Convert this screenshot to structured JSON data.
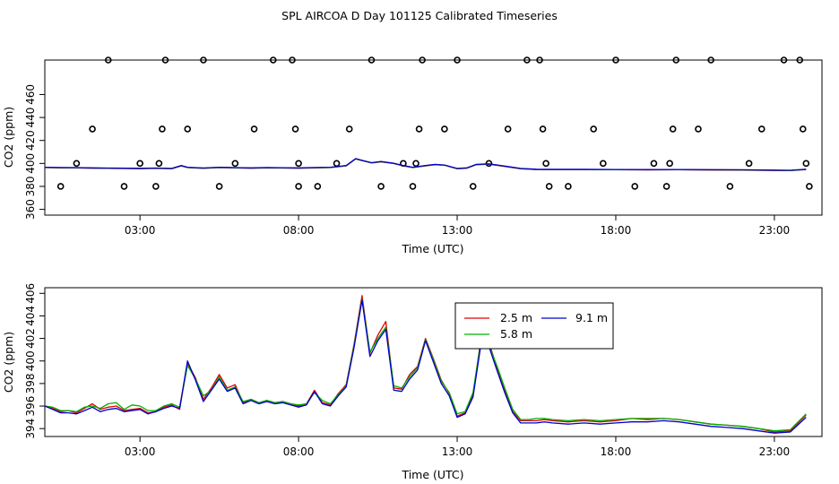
{
  "title": "SPL AIRCOA D  Day 101125  Calibrated Timeseries",
  "chart_data": [
    {
      "type": "scatter+line",
      "ylabel": "CO2 (ppm)",
      "xlabel": "Time (UTC)",
      "xlim": [
        0,
        24.5
      ],
      "ylim": [
        355,
        490
      ],
      "xticks": [
        3,
        8,
        13,
        18,
        23
      ],
      "xtick_labels": [
        "03:00",
        "08:00",
        "13:00",
        "18:00",
        "23:00"
      ],
      "yticks": [
        360,
        380,
        400,
        420,
        440,
        460
      ],
      "ytick_labels": [
        "360",
        "",
        "400",
        "",
        "440",
        ""
      ],
      "ytick_labels_full": [
        "360",
        "380",
        "400",
        "420",
        "440",
        "460"
      ],
      "colors": {
        "2.5 m": "#e00000",
        "5.8 m": "#00b000",
        "9.1 m": "#0000cc",
        "points": "#000000"
      },
      "line_x": [
        0.0,
        0.5,
        1.0,
        1.5,
        2.0,
        2.5,
        3.0,
        3.5,
        4.0,
        4.3,
        4.5,
        5.0,
        5.5,
        6.0,
        6.5,
        7.0,
        7.5,
        8.0,
        8.5,
        9.0,
        9.5,
        9.8,
        10.0,
        10.3,
        10.6,
        11.0,
        11.3,
        11.6,
        12.0,
        12.3,
        12.6,
        13.0,
        13.3,
        13.6,
        14.0,
        14.5,
        15.0,
        15.5,
        16.0,
        17.0,
        18.0,
        19.0,
        20.0,
        21.0,
        22.0,
        23.0,
        23.5,
        24.0
      ],
      "line_y": [
        396.5,
        396.3,
        396.2,
        396.0,
        395.8,
        395.7,
        395.6,
        395.8,
        395.5,
        398.0,
        396.5,
        395.9,
        396.5,
        396.2,
        396.0,
        396.3,
        396.1,
        396.0,
        396.3,
        396.5,
        398.0,
        404.0,
        402.5,
        400.5,
        401.5,
        400.0,
        398.0,
        396.5,
        398.0,
        399.0,
        398.5,
        395.5,
        396.0,
        399.0,
        399.5,
        397.5,
        395.5,
        394.8,
        394.7,
        394.7,
        394.6,
        394.5,
        394.6,
        394.4,
        394.3,
        394.0,
        393.9,
        394.8
      ],
      "points": [
        [
          0.5,
          380
        ],
        [
          1.0,
          400
        ],
        [
          1.5,
          430
        ],
        [
          2.0,
          490
        ],
        [
          2.5,
          380
        ],
        [
          3.0,
          400
        ],
        [
          3.5,
          380
        ],
        [
          3.6,
          400
        ],
        [
          3.7,
          430
        ],
        [
          3.8,
          490
        ],
        [
          4.5,
          430
        ],
        [
          5.0,
          490
        ],
        [
          5.5,
          380
        ],
        [
          6.0,
          400
        ],
        [
          6.6,
          430
        ],
        [
          7.2,
          490
        ],
        [
          7.8,
          490
        ],
        [
          7.9,
          430
        ],
        [
          8.0,
          400
        ],
        [
          8.0,
          380
        ],
        [
          8.6,
          380
        ],
        [
          9.2,
          400
        ],
        [
          9.6,
          430
        ],
        [
          10.3,
          490
        ],
        [
          10.6,
          380
        ],
        [
          11.3,
          400
        ],
        [
          11.6,
          380
        ],
        [
          11.7,
          400
        ],
        [
          11.8,
          430
        ],
        [
          11.9,
          490
        ],
        [
          12.6,
          430
        ],
        [
          13.0,
          490
        ],
        [
          13.5,
          380
        ],
        [
          14.0,
          400
        ],
        [
          14.6,
          430
        ],
        [
          15.2,
          490
        ],
        [
          15.6,
          490
        ],
        [
          15.7,
          430
        ],
        [
          15.8,
          400
        ],
        [
          15.9,
          380
        ],
        [
          16.5,
          380
        ],
        [
          17.3,
          430
        ],
        [
          17.6,
          400
        ],
        [
          18.0,
          490
        ],
        [
          18.6,
          380
        ],
        [
          19.2,
          400
        ],
        [
          19.6,
          380
        ],
        [
          19.7,
          400
        ],
        [
          19.8,
          430
        ],
        [
          19.9,
          490
        ],
        [
          20.6,
          430
        ],
        [
          21.0,
          490
        ],
        [
          21.6,
          380
        ],
        [
          22.2,
          400
        ],
        [
          22.6,
          430
        ],
        [
          23.3,
          490
        ],
        [
          23.8,
          490
        ],
        [
          23.9,
          430
        ],
        [
          24.0,
          400
        ],
        [
          24.1,
          380
        ]
      ]
    },
    {
      "type": "line",
      "ylabel": "CO2 (ppm)",
      "xlabel": "Time (UTC)",
      "xlim": [
        0,
        24.5
      ],
      "ylim": [
        393.3,
        406.5
      ],
      "xticks": [
        3,
        8,
        13,
        18,
        23
      ],
      "xtick_labels": [
        "03:00",
        "08:00",
        "13:00",
        "18:00",
        "23:00"
      ],
      "yticks": [
        394,
        396,
        398,
        400,
        402,
        404,
        406
      ],
      "ytick_labels": [
        "394",
        "396",
        "",
        "",
        "402",
        "",
        "406"
      ],
      "ytick_labels_full": [
        "394",
        "396",
        "398",
        "400",
        "402",
        "404",
        "406"
      ],
      "legend": {
        "position": "top-center",
        "entries": [
          "2.5 m",
          "5.8 m",
          "9.1 m"
        ]
      },
      "x": [
        0.0,
        0.25,
        0.5,
        0.75,
        1.0,
        1.25,
        1.5,
        1.75,
        2.0,
        2.25,
        2.5,
        2.75,
        3.0,
        3.25,
        3.5,
        3.75,
        4.0,
        4.25,
        4.5,
        4.75,
        5.0,
        5.25,
        5.5,
        5.75,
        6.0,
        6.25,
        6.5,
        6.75,
        7.0,
        7.25,
        7.5,
        7.75,
        8.0,
        8.25,
        8.5,
        8.75,
        9.0,
        9.25,
        9.5,
        9.75,
        10.0,
        10.25,
        10.5,
        10.75,
        11.0,
        11.25,
        11.5,
        11.75,
        12.0,
        12.25,
        12.5,
        12.75,
        13.0,
        13.25,
        13.5,
        13.75,
        14.0,
        14.25,
        14.5,
        14.75,
        15.0,
        15.25,
        15.5,
        15.75,
        16.0,
        16.5,
        17.0,
        17.5,
        18.0,
        18.5,
        19.0,
        19.5,
        20.0,
        20.5,
        21.0,
        21.5,
        22.0,
        22.5,
        23.0,
        23.5,
        24.0
      ],
      "series": [
        {
          "name": "2.5 m",
          "values": [
            396.0,
            395.8,
            395.5,
            395.6,
            395.4,
            395.8,
            396.2,
            395.7,
            395.9,
            396.0,
            395.6,
            395.7,
            395.8,
            395.4,
            395.5,
            395.9,
            396.1,
            395.7,
            399.8,
            398.5,
            396.6,
            397.6,
            398.8,
            397.6,
            397.9,
            396.3,
            396.6,
            396.3,
            396.5,
            396.3,
            396.4,
            396.2,
            396.0,
            396.2,
            397.4,
            396.3,
            396.1,
            397.1,
            397.9,
            401.5,
            405.8,
            400.7,
            402.3,
            403.5,
            397.6,
            397.5,
            398.8,
            399.5,
            402.0,
            400.2,
            398.3,
            397.1,
            395.1,
            395.4,
            397.0,
            402.0,
            401.7,
            399.4,
            397.4,
            395.5,
            394.7,
            394.7,
            394.7,
            394.8,
            394.7,
            394.6,
            394.7,
            394.6,
            394.7,
            394.9,
            394.8,
            394.9,
            394.8,
            394.6,
            394.4,
            394.3,
            394.2,
            394.0,
            393.7,
            393.8,
            395.2
          ]
        },
        {
          "name": "5.8 m",
          "values": [
            396.0,
            395.9,
            395.6,
            395.6,
            395.5,
            395.9,
            396.0,
            395.8,
            396.2,
            396.3,
            395.7,
            396.1,
            396.0,
            395.6,
            395.6,
            396.0,
            396.2,
            395.9,
            399.6,
            398.4,
            396.9,
            397.4,
            398.6,
            397.4,
            397.7,
            396.4,
            396.6,
            396.3,
            396.5,
            396.3,
            396.4,
            396.2,
            396.1,
            396.2,
            397.2,
            396.5,
            396.2,
            397.0,
            397.8,
            401.4,
            405.5,
            400.8,
            402.0,
            403.0,
            397.8,
            397.6,
            398.6,
            399.4,
            401.9,
            400.1,
            398.2,
            397.2,
            395.3,
            395.5,
            397.2,
            401.8,
            401.4,
            399.6,
            397.6,
            395.7,
            394.8,
            394.8,
            394.9,
            394.9,
            394.8,
            394.7,
            394.8,
            394.7,
            394.8,
            394.9,
            394.9,
            394.9,
            394.8,
            394.6,
            394.4,
            394.3,
            394.2,
            394.0,
            393.8,
            393.9,
            395.3
          ]
        },
        {
          "name": "9.1 m",
          "values": [
            396.0,
            395.7,
            395.4,
            395.4,
            395.3,
            395.6,
            395.9,
            395.5,
            395.7,
            395.8,
            395.5,
            395.6,
            395.7,
            395.3,
            395.5,
            395.8,
            396.0,
            395.8,
            400.0,
            398.3,
            396.4,
            397.4,
            398.4,
            397.3,
            397.6,
            396.2,
            396.5,
            396.2,
            396.4,
            396.2,
            396.3,
            396.1,
            395.9,
            396.1,
            397.3,
            396.2,
            396.0,
            396.9,
            397.7,
            401.2,
            405.4,
            400.4,
            401.8,
            402.8,
            397.4,
            397.3,
            398.4,
            399.2,
            401.8,
            399.9,
            398.0,
            396.9,
            395.0,
            395.3,
            396.8,
            401.5,
            401.3,
            399.2,
            397.2,
            395.4,
            394.5,
            394.5,
            394.5,
            394.6,
            394.5,
            394.4,
            394.5,
            394.4,
            394.5,
            394.6,
            394.6,
            394.7,
            394.6,
            394.4,
            394.2,
            394.1,
            394.0,
            393.8,
            393.6,
            393.7,
            395.0
          ]
        }
      ]
    }
  ]
}
